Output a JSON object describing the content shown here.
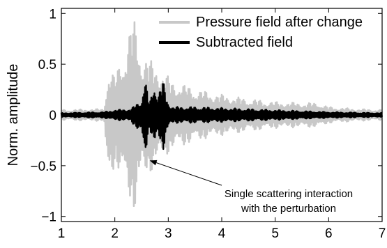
{
  "chart_data": {
    "type": "line",
    "title": "",
    "xlabel": "",
    "ylabel": "Norm. amplitude",
    "xlim": [
      1,
      7
    ],
    "ylim": [
      -1.05,
      1.05
    ],
    "xticks": [
      1,
      2,
      3,
      4,
      5,
      6,
      7
    ],
    "yticks": [
      -1,
      -0.5,
      0,
      0.5,
      1
    ],
    "xtick_labels": [
      "1",
      "2",
      "3",
      "4",
      "5",
      "6",
      "7"
    ],
    "ytick_labels": [
      "−1",
      "−0.5",
      "0",
      "0.5",
      "1"
    ],
    "grid": false,
    "legend_position": "top-right",
    "series": [
      {
        "name": "Pressure field after change",
        "color": "#c8c8c8",
        "style": "dense oscillatory waveform",
        "envelope": {
          "t": [
            1.0,
            1.8,
            1.83,
            1.9,
            2.0,
            2.1,
            2.2,
            2.3,
            2.35,
            2.4,
            2.5,
            2.6,
            2.7,
            2.8,
            2.9,
            3.0,
            3.1,
            3.3,
            3.5,
            3.8,
            4.0,
            4.5,
            5.0,
            5.5,
            5.8,
            6.0,
            6.5,
            7.0
          ],
          "upper": [
            0.05,
            0.06,
            0.23,
            0.45,
            0.38,
            0.55,
            0.65,
            0.9,
            1.0,
            0.85,
            0.6,
            0.58,
            0.52,
            0.48,
            0.42,
            0.38,
            0.33,
            0.3,
            0.26,
            0.22,
            0.2,
            0.16,
            0.13,
            0.12,
            0.12,
            0.08,
            0.06,
            0.05
          ],
          "lower": [
            -0.05,
            -0.06,
            -0.4,
            -0.65,
            -0.5,
            -0.6,
            -0.72,
            -0.88,
            -1.0,
            -0.85,
            -0.62,
            -0.6,
            -0.55,
            -0.45,
            -0.42,
            -0.38,
            -0.33,
            -0.3,
            -0.26,
            -0.22,
            -0.2,
            -0.16,
            -0.13,
            -0.12,
            -0.12,
            -0.08,
            -0.06,
            -0.05
          ]
        }
      },
      {
        "name": "Subtracted field",
        "color": "#000000",
        "style": "dense oscillatory waveform",
        "envelope": {
          "t": [
            1.0,
            1.8,
            2.0,
            2.3,
            2.5,
            2.55,
            2.6,
            2.65,
            2.7,
            2.75,
            2.8,
            2.85,
            2.9,
            2.95,
            3.0,
            3.1,
            3.5,
            4.0,
            4.5,
            5.0,
            5.5,
            6.0,
            7.0
          ],
          "upper": [
            0.02,
            0.03,
            0.05,
            0.06,
            0.15,
            0.38,
            0.28,
            0.1,
            0.25,
            0.33,
            0.2,
            0.27,
            0.35,
            0.22,
            0.12,
            0.08,
            0.08,
            0.07,
            0.06,
            0.05,
            0.04,
            0.03,
            0.02
          ],
          "lower": [
            -0.02,
            -0.03,
            -0.05,
            -0.06,
            -0.2,
            -0.42,
            -0.3,
            -0.12,
            -0.25,
            -0.35,
            -0.2,
            -0.27,
            -0.37,
            -0.22,
            -0.12,
            -0.08,
            -0.08,
            -0.07,
            -0.06,
            -0.05,
            -0.04,
            -0.03,
            -0.02
          ]
        }
      }
    ],
    "annotations": [
      {
        "text_lines": [
          "Single scattering interaction",
          "with the perturbation"
        ],
        "arrow_to": {
          "x": 2.6,
          "y": -0.43
        }
      }
    ]
  }
}
